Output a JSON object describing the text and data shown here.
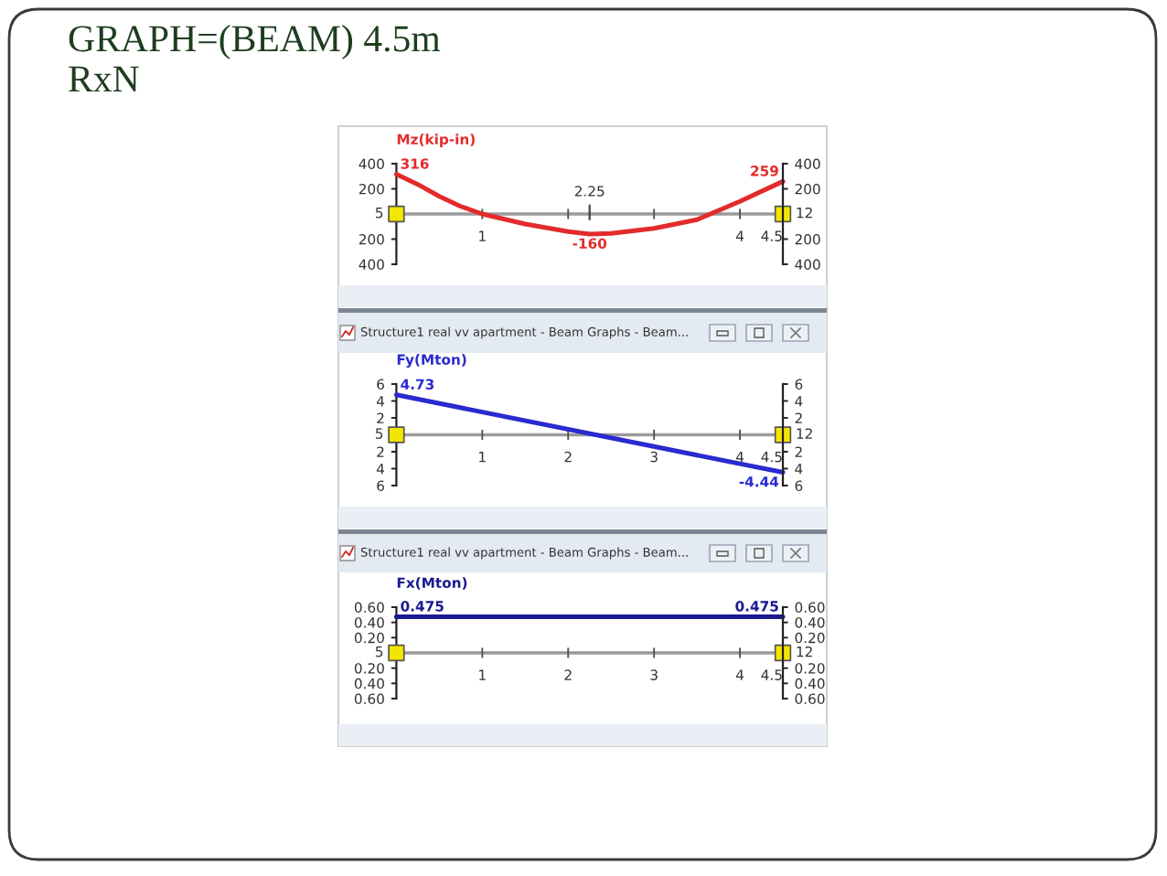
{
  "chart_data": [
    {
      "type": "line",
      "title": "GRAPH=(BEAM) 4.5m",
      "subtitle": "RxN",
      "ylabel": "Mz(kip-in)",
      "series": [
        {
          "color": "#e32b2b",
          "x": [
            0,
            0.25,
            0.5,
            0.75,
            1,
            1.5,
            2,
            2.25,
            2.5,
            3,
            3.5,
            4,
            4.5
          ],
          "values": [
            316,
            235,
            140,
            60,
            0,
            -80,
            -140,
            -160,
            -155,
            -115,
            -45,
            100,
            259
          ],
          "value_labels": [
            "316",
            null,
            null,
            null,
            null,
            null,
            null,
            "-160",
            null,
            null,
            null,
            null,
            "259"
          ]
        },
        {
          "type": "scatter",
          "name": "5",
          "color": "#f2e600",
          "marker": "square",
          "x": [
            0
          ],
          "values": [
            0
          ]
        },
        {
          "type": "scatter",
          "name": "12",
          "color": "#f2e600",
          "marker": "square",
          "x": [
            4.5
          ],
          "values": [
            0
          ]
        }
      ],
      "xlim": [
        0,
        4.5
      ],
      "xticks": [
        1,
        {
          "value": 2,
          "label": null
        },
        {
          "value": 3,
          "label": null
        },
        4,
        4.5
      ],
      "ylim": [
        -400,
        400
      ],
      "yticks": [
        400,
        200,
        {
          "value": -200,
          "label": "200"
        },
        {
          "value": -400,
          "label": "400"
        }
      ],
      "y2lim": [
        -400,
        400
      ],
      "y2ticks": [
        400,
        200,
        {
          "value": -200,
          "label": "200"
        },
        {
          "value": -400,
          "label": "400"
        }
      ],
      "annotations": [
        "2.25"
      ]
    },
    {
      "type": "line",
      "ylabel": "Fy(Mton)",
      "series": [
        {
          "color": "#2a2ad0",
          "x": [
            0,
            4.5
          ],
          "values": [
            4.73,
            -4.44
          ],
          "value_labels": [
            "4.73",
            "-4.44"
          ]
        },
        {
          "type": "scatter",
          "name": "5",
          "color": "#f2e600",
          "marker": "square",
          "x": [
            0
          ],
          "values": [
            0
          ]
        },
        {
          "type": "scatter",
          "name": "12",
          "color": "#f2e600",
          "marker": "square",
          "x": [
            4.5
          ],
          "values": [
            0
          ]
        }
      ],
      "xlim": [
        0,
        4.5
      ],
      "xticks": [
        1,
        2,
        3,
        4,
        4.5
      ],
      "ylim": [
        -6,
        6
      ],
      "yticks": [
        6,
        4,
        2,
        {
          "value": -2,
          "label": "2"
        },
        {
          "value": -4,
          "label": "4"
        },
        {
          "value": -6,
          "label": "6"
        }
      ],
      "y2lim": [
        -6,
        6
      ],
      "y2ticks": [
        6,
        4,
        2,
        {
          "value": -2,
          "label": "2"
        },
        {
          "value": -4,
          "label": "4"
        },
        {
          "value": -6,
          "label": "6"
        }
      ],
      "annotations": [
        "Structure1 real vv apartment - Beam Graphs - Beam..."
      ]
    },
    {
      "type": "line",
      "ylabel": "Fx(Mton)",
      "series": [
        {
          "color": "#1a1a90",
          "x": [
            0,
            4.5
          ],
          "values": [
            0.475,
            0.475
          ],
          "value_labels": [
            "0.475",
            "0.475"
          ]
        },
        {
          "type": "scatter",
          "name": "5",
          "color": "#f2e600",
          "marker": "square",
          "x": [
            0
          ],
          "values": [
            0
          ]
        },
        {
          "type": "scatter",
          "name": "12",
          "color": "#f2e600",
          "marker": "square",
          "x": [
            4.5
          ],
          "values": [
            0
          ]
        }
      ],
      "xlim": [
        0,
        4.5
      ],
      "xticks": [
        1,
        2,
        3,
        4,
        4.5
      ],
      "ylim": [
        -0.6,
        0.6
      ],
      "yticks": [
        {
          "value": -0.6,
          "label": "0.60"
        },
        {
          "value": -0.4,
          "label": "0.40"
        },
        {
          "value": -0.2,
          "label": "0.20"
        },
        {
          "value": 0.2,
          "label": "0.20"
        },
        {
          "value": 0.4,
          "label": "0.40"
        },
        {
          "value": 0.6,
          "label": "0.60"
        }
      ],
      "y2lim": [
        -0.6,
        0.6
      ],
      "y2ticks": [
        {
          "value": -0.6,
          "label": "0.60"
        },
        {
          "value": -0.4,
          "label": "0.40"
        },
        {
          "value": -0.2,
          "label": "0.20"
        },
        {
          "value": 0.2,
          "label": "0.20"
        },
        {
          "value": 0.4,
          "label": "0.40"
        },
        {
          "value": 0.6,
          "label": "0.60"
        }
      ],
      "annotations": [
        "Structure1 real vv apartment - Beam Graphs - Beam..."
      ]
    }
  ]
}
